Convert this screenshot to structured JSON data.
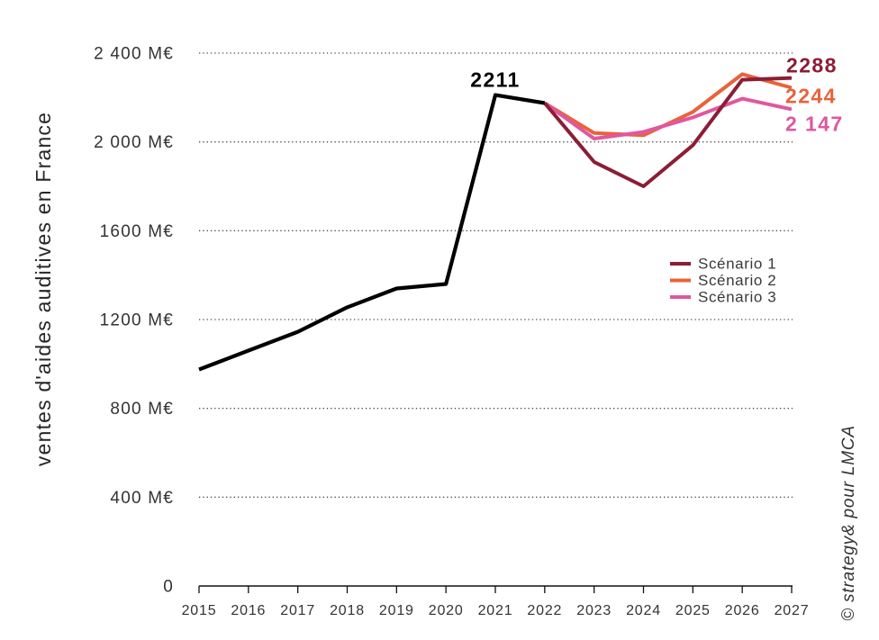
{
  "chart_data": {
    "type": "line",
    "ylabel": "ventes d'aides auditives en France",
    "x": [
      2015,
      2016,
      2017,
      2018,
      2019,
      2020,
      2021,
      2022,
      2023,
      2024,
      2025,
      2026,
      2027
    ],
    "ylim": [
      0,
      2400
    ],
    "y_ticks": [
      0,
      400,
      800,
      1200,
      1600,
      2000,
      2400
    ],
    "y_tick_labels": [
      "0",
      "400 M€",
      "800 M€",
      "1200 M€",
      "1600 M€",
      "2 000 M€",
      "2 400 M€"
    ],
    "grid": true,
    "series": [
      {
        "color": "#000000",
        "x": [
          2015,
          2016,
          2017,
          2018,
          2019,
          2020,
          2021,
          2022
        ],
        "values": [
          975,
          1060,
          1145,
          1255,
          1340,
          1360,
          2211,
          2175
        ]
      },
      {
        "name": "Scénario 1",
        "color": "#8C1D35",
        "x": [
          2022,
          2023,
          2024,
          2025,
          2026,
          2027
        ],
        "values": [
          2175,
          1910,
          1800,
          1985,
          2280,
          2288
        ]
      },
      {
        "name": "Scénario 2",
        "color": "#E8633B",
        "x": [
          2022,
          2023,
          2024,
          2025,
          2026,
          2027
        ],
        "values": [
          2175,
          2040,
          2030,
          2135,
          2305,
          2244
        ]
      },
      {
        "name": "Scénario 3",
        "color": "#E0579F",
        "x": [
          2022,
          2023,
          2024,
          2025,
          2026,
          2027
        ],
        "values": [
          2175,
          2015,
          2045,
          2110,
          2195,
          2147
        ]
      }
    ],
    "annotations": [
      {
        "text": "2211",
        "x": 2021,
        "y": 2211,
        "color": "#000000"
      },
      {
        "text": "2288",
        "x": 2027,
        "y": 2288,
        "color": "#8C1D35"
      },
      {
        "text": "2244",
        "x": 2027,
        "y": 2244,
        "color": "#E8633B"
      },
      {
        "text": "2 147",
        "x": 2027,
        "y": 2147,
        "color": "#E0579F"
      }
    ],
    "source": "© strategy& pour LMCA"
  }
}
